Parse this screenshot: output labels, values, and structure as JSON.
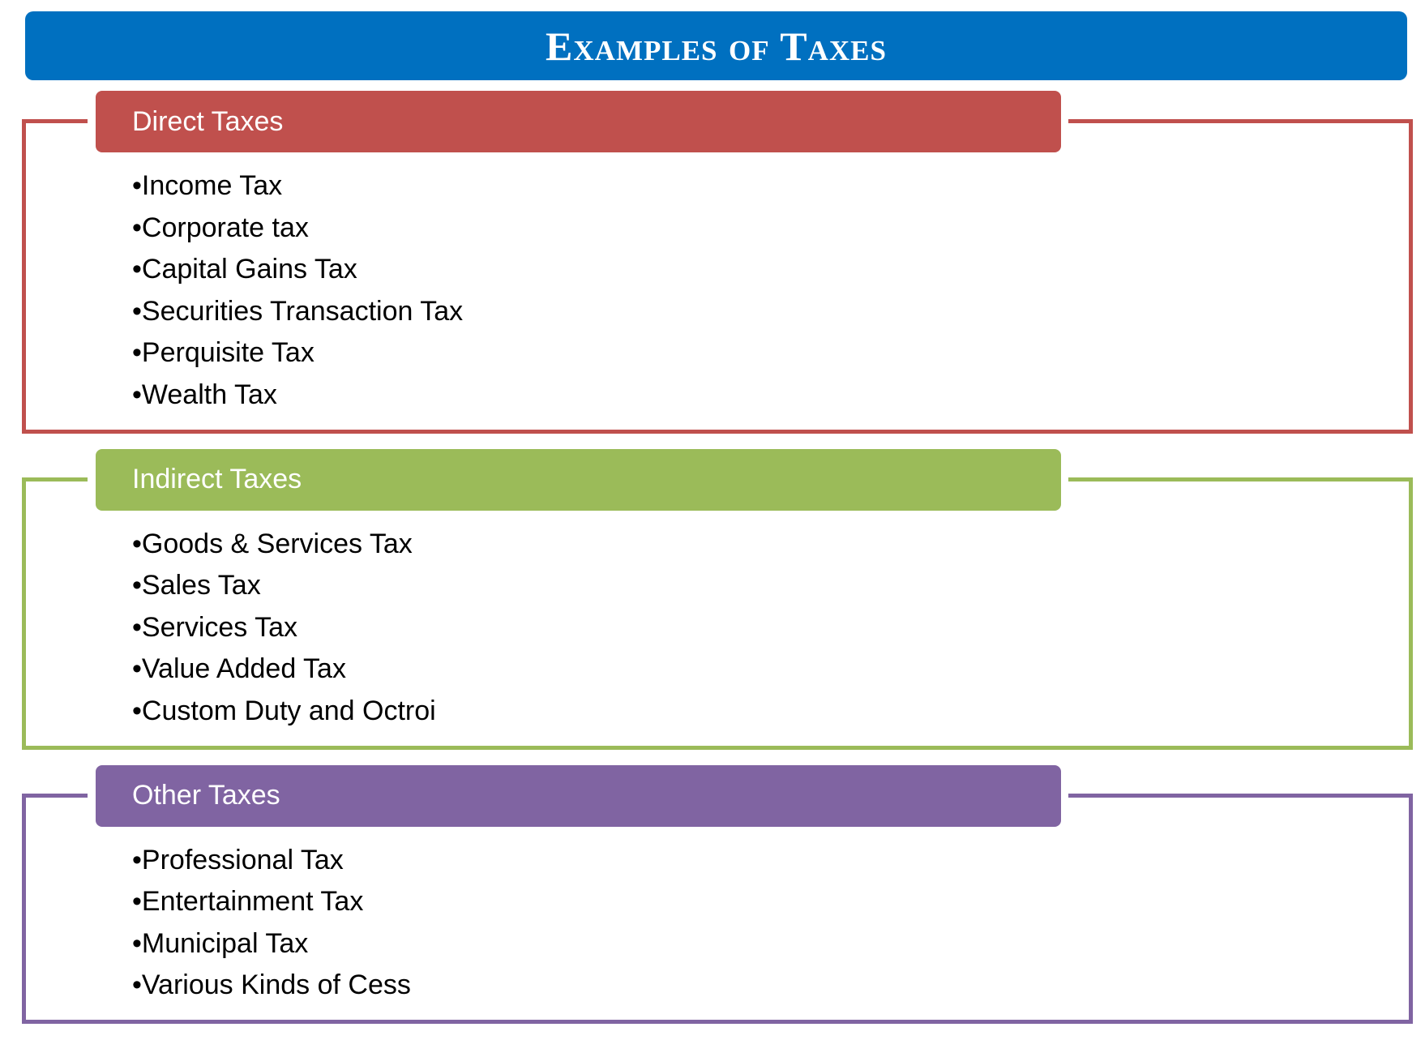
{
  "title": "Examples of Taxes",
  "sections": [
    {
      "heading": "Direct Taxes",
      "items": [
        "•Income Tax",
        "•Corporate tax",
        "•Capital Gains Tax",
        "•Securities Transaction Tax",
        "•Perquisite Tax",
        "•Wealth Tax"
      ]
    },
    {
      "heading": "Indirect Taxes",
      "items": [
        "•Goods & Services Tax",
        "•Sales Tax",
        "•Services Tax",
        "•Value Added Tax",
        "•Custom Duty and Octroi"
      ]
    },
    {
      "heading": "Other Taxes",
      "items": [
        "•Professional Tax",
        "•Entertainment Tax",
        "•Municipal Tax",
        "•Various Kinds of Cess"
      ]
    }
  ]
}
